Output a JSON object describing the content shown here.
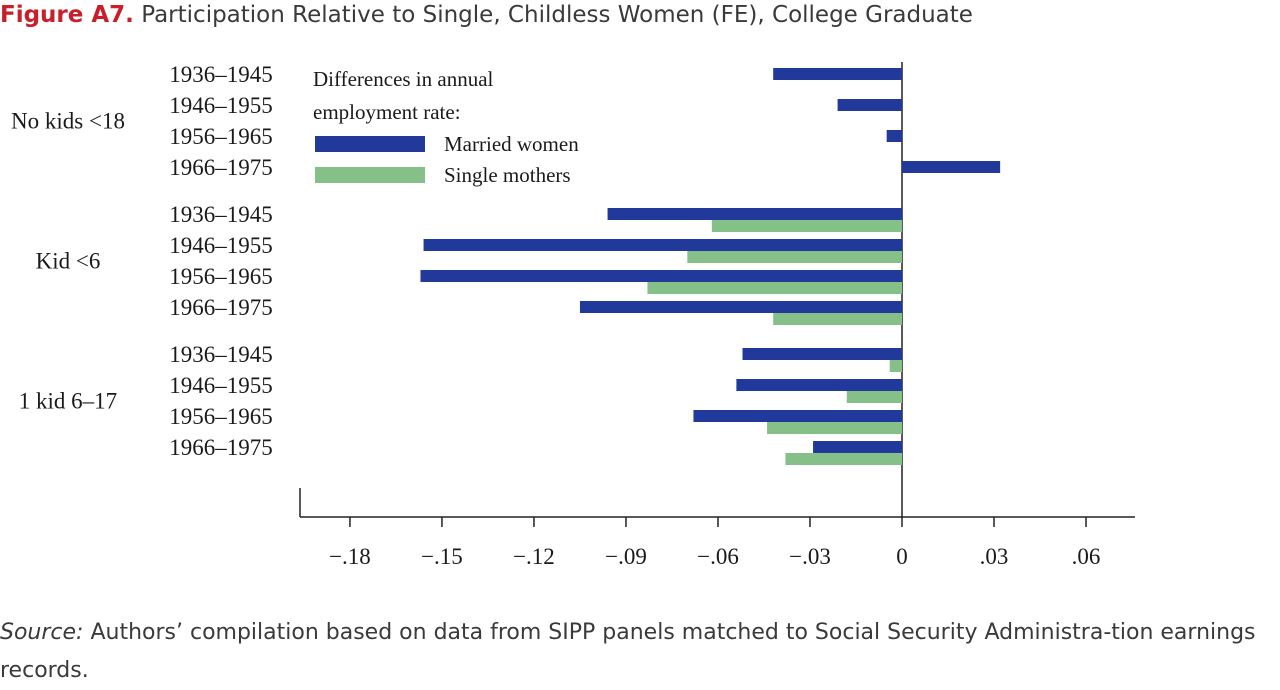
{
  "figure": {
    "label": "Figure A7.",
    "title": "Participation Relative to Single, Childless Women (FE), College Graduate"
  },
  "chart_data": {
    "type": "bar",
    "orientation": "horizontal",
    "title": "Participation Relative to Single, Childless Women (FE), College Graduate",
    "xlim": [
      -0.2,
      0.075
    ],
    "xticks": [
      -0.18,
      -0.15,
      -0.12,
      -0.09,
      -0.06,
      -0.03,
      0,
      0.03,
      0.06
    ],
    "xtick_labels": [
      "−.18",
      "−.15",
      "−.12",
      "−.09",
      "−.06",
      "−.03",
      "0",
      ".03",
      ".06"
    ],
    "grid": false,
    "legend": {
      "placement": "top-left",
      "title_lines": [
        "Differences in annual",
        "employment rate:"
      ],
      "entries": [
        "Married women",
        "Single mothers"
      ]
    },
    "groups": [
      {
        "name": "No kids <18",
        "categories": [
          "1936–1945",
          "1946–1955",
          "1956–1965",
          "1966–1975"
        ],
        "series": [
          {
            "name": "Married women",
            "values": [
              -0.042,
              -0.021,
              -0.005,
              0.032
            ]
          },
          {
            "name": "Single mothers",
            "values": [
              null,
              null,
              null,
              null
            ]
          }
        ]
      },
      {
        "name": "Kid <6",
        "categories": [
          "1936–1945",
          "1946–1955",
          "1956–1965",
          "1966–1975"
        ],
        "series": [
          {
            "name": "Married women",
            "values": [
              -0.096,
              -0.156,
              -0.157,
              -0.105
            ]
          },
          {
            "name": "Single mothers",
            "values": [
              -0.062,
              -0.07,
              -0.083,
              -0.042
            ]
          }
        ]
      },
      {
        "name": "1 kid 6–17",
        "categories": [
          "1936–1945",
          "1946–1955",
          "1956–1965",
          "1966–1975"
        ],
        "series": [
          {
            "name": "Married women",
            "values": [
              -0.052,
              -0.054,
              -0.068,
              -0.029
            ]
          },
          {
            "name": "Single mothers",
            "values": [
              -0.004,
              -0.018,
              -0.044,
              -0.038
            ]
          }
        ]
      }
    ],
    "colors": {
      "Married women": "#21399a",
      "Single mothers": "#84c087"
    }
  },
  "source": {
    "label": "Source:",
    "text": " Authors’ compilation based on data from SIPP panels matched to Social Security Administra-tion earnings records."
  }
}
